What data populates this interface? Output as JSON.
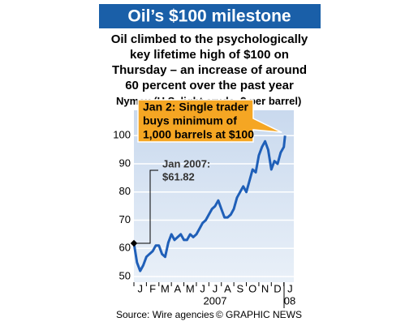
{
  "chart_data": {
    "type": "line",
    "title": "Oil’s $100 milestone",
    "subtitle": [
      "Oil climbed to the psychologically",
      "key lifetime high of $100 on",
      "Thursday – an increase of around",
      "60 percent over the past year"
    ],
    "y_axis_label": "Nymex (U.S. light crude, $ per barrel)",
    "x_axis_label": "2007",
    "x_axis_label_2": "08",
    "source": "Source: Wire agencies",
    "credit": "© GRAPHIC NEWS",
    "annotations": [
      {
        "text": [
          "Jan 2: Single trader",
          "buys minimum of",
          "1,000 barrels at $100"
        ]
      },
      {
        "text": [
          "Jan 2007:",
          "$61.82"
        ]
      }
    ],
    "color": "#1f5fb8",
    "grid": true,
    "xlim": [
      0,
      12.8
    ],
    "ylim": [
      48,
      109
    ],
    "yticks": [
      50,
      60,
      70,
      80,
      90,
      100
    ],
    "xticks": [
      {
        "value": 0.5,
        "label": "J"
      },
      {
        "value": 1.5,
        "label": "F"
      },
      {
        "value": 2.5,
        "label": "M"
      },
      {
        "value": 3.5,
        "label": "A"
      },
      {
        "value": 4.5,
        "label": "M"
      },
      {
        "value": 5.5,
        "label": "J"
      },
      {
        "value": 6.5,
        "label": "J"
      },
      {
        "value": 7.5,
        "label": "A"
      },
      {
        "value": 8.5,
        "label": "S"
      },
      {
        "value": 9.5,
        "label": "O"
      },
      {
        "value": 10.5,
        "label": "N"
      },
      {
        "value": 11.5,
        "label": "D"
      },
      {
        "value": 12.5,
        "label": "J"
      }
    ],
    "x": [
      0,
      0.25,
      0.5,
      0.75,
      1,
      1.25,
      1.5,
      1.75,
      2,
      2.25,
      2.5,
      2.75,
      3,
      3.25,
      3.5,
      3.75,
      4,
      4.25,
      4.5,
      4.75,
      5,
      5.25,
      5.5,
      5.75,
      6,
      6.25,
      6.5,
      6.75,
      7,
      7.25,
      7.5,
      7.75,
      8,
      8.25,
      8.5,
      8.75,
      9,
      9.25,
      9.5,
      9.75,
      10,
      10.25,
      10.5,
      10.75,
      11,
      11.25,
      11.5,
      11.75,
      12,
      12.1
    ],
    "values": [
      61.82,
      55,
      52,
      54,
      57,
      58,
      59,
      61,
      61,
      58,
      57,
      62,
      65,
      63,
      64,
      65,
      63,
      63,
      65,
      64,
      65,
      67,
      69,
      70,
      72,
      74,
      75,
      77,
      74,
      71,
      71,
      72,
      74,
      78,
      80,
      82,
      80,
      84,
      88,
      87,
      93,
      96,
      98,
      95,
      88,
      91,
      90,
      94,
      96,
      100
    ]
  }
}
